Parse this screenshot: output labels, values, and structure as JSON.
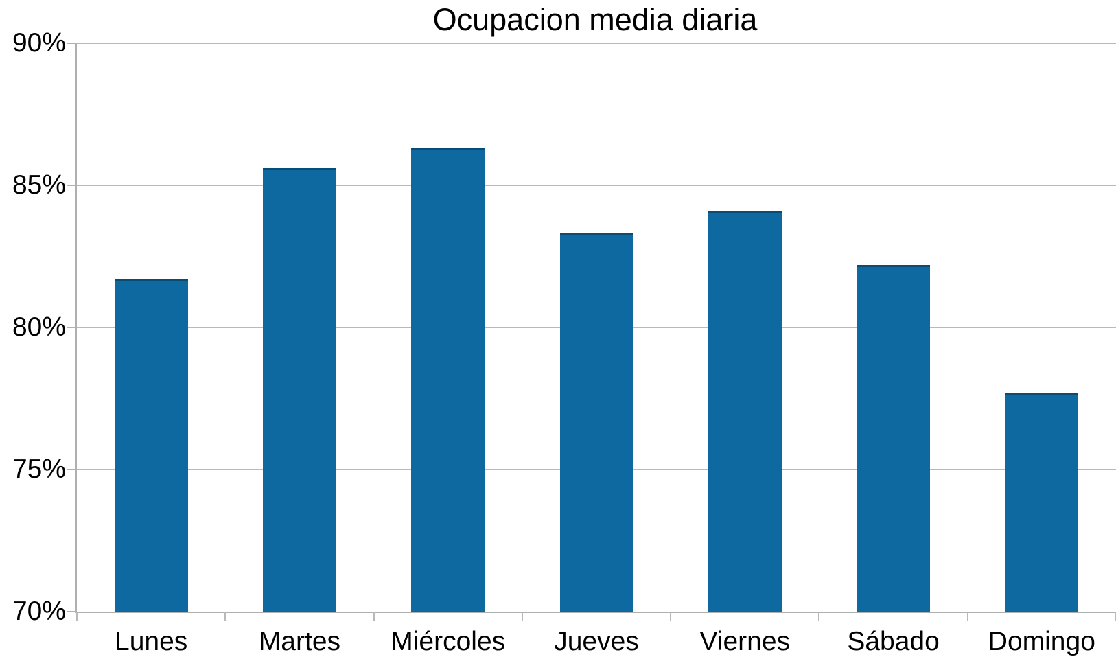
{
  "chart_data": {
    "type": "bar",
    "title": "Ocupacion media diaria",
    "categories": [
      "Lunes",
      "Martes",
      "Miércoles",
      "Jueves",
      "Viernes",
      "Sábado",
      "Domingo"
    ],
    "values": [
      81.7,
      85.6,
      86.3,
      83.3,
      84.1,
      82.2,
      77.7
    ],
    "unit": "%",
    "xlabel": "",
    "ylabel": "",
    "ylim": [
      70,
      90
    ],
    "y_tick_values": [
      70,
      75,
      80,
      85,
      90
    ],
    "y_tick_labels": [
      "70%",
      "75%",
      "80%",
      "85%",
      "90%"
    ],
    "grid": true,
    "legend_position": "none",
    "colors": {
      "bar_fill": "#0e69a0",
      "bar_edge": "#094d76",
      "gridline": "#b9b9b9",
      "axis": "#b0b0b0",
      "text": "#000000",
      "background": "#ffffff"
    }
  }
}
